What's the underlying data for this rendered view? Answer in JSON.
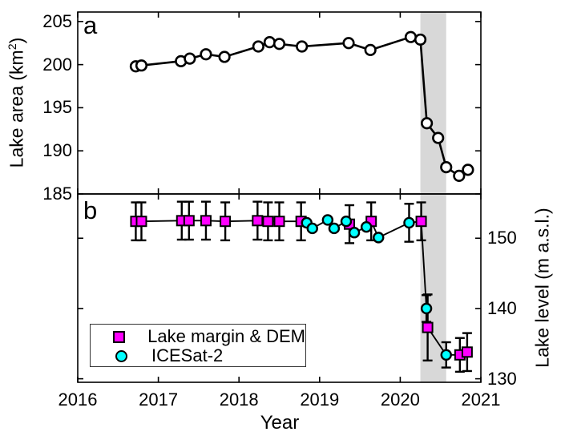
{
  "figure": {
    "background": "#ffffff",
    "axis_color": "#000000",
    "xlabel": "Year",
    "x_ticks": [
      2016,
      2017,
      2018,
      2019,
      2020,
      2021
    ],
    "xlim": [
      2016,
      2021
    ]
  },
  "labels": {
    "panel_a_letter": "a",
    "panel_b_letter": "b",
    "ylabel_a": {
      "pre": "Lake area (km",
      "sup": "2",
      "post": ")"
    },
    "ylabel_b": "Lake level (m a.s.l.)"
  },
  "legend": {
    "items": [
      {
        "label": "Lake margin & DEM",
        "marker": "square",
        "color": "#ff00ff"
      },
      {
        "label": "ICESat-2",
        "marker": "circle",
        "color": "#00ffff"
      }
    ]
  },
  "chart_data": [
    {
      "panel": "a",
      "type": "line",
      "ylabel": "Lake area (km2)",
      "xlabel": "Year",
      "xlim": [
        2016,
        2021
      ],
      "ylim": [
        185,
        206.1
      ],
      "yticks": [
        185,
        190,
        195,
        200,
        205
      ],
      "xticks": [
        2016,
        2017,
        2018,
        2019,
        2020,
        2021
      ],
      "grid": false,
      "highlight_band": {
        "x_start": 2020.25,
        "x_end": 2020.57,
        "color": "#d8d8d8"
      },
      "series": [
        {
          "name": "Lake area",
          "marker": "open-circle",
          "marker_fill": "#ffffff",
          "line_color": "#000000",
          "x": [
            2016.72,
            2016.79,
            2017.28,
            2017.39,
            2017.59,
            2017.82,
            2018.24,
            2018.38,
            2018.5,
            2018.78,
            2019.36,
            2019.63,
            2020.13,
            2020.25,
            2020.33,
            2020.47,
            2020.57,
            2020.73,
            2020.84
          ],
          "y": [
            199.8,
            199.9,
            200.4,
            200.7,
            201.2,
            200.9,
            202.1,
            202.6,
            202.4,
            202.1,
            202.5,
            201.7,
            203.2,
            202.9,
            193.2,
            191.5,
            188.1,
            187.1,
            187.8
          ]
        }
      ]
    },
    {
      "panel": "b",
      "type": "line",
      "ylabel": "Lake level (m a.s.l.)",
      "xlabel": "Year",
      "xlim": [
        2016,
        2021
      ],
      "ylim": [
        129.5,
        156.3
      ],
      "yticks": [
        130,
        140,
        150
      ],
      "xticks": [
        2016,
        2017,
        2018,
        2019,
        2020,
        2021
      ],
      "grid": false,
      "legend_position": "lower-left",
      "highlight_band": {
        "x_start": 2020.25,
        "x_end": 2020.57,
        "color": "#d8d8d8"
      },
      "series": [
        {
          "name": "Lake margin & DEM",
          "marker": "square",
          "color": "#ff00ff",
          "points": [
            {
              "x": 2016.72,
              "y": 152.4,
              "err": 2.7
            },
            {
              "x": 2016.79,
              "y": 152.4,
              "err": 2.7
            },
            {
              "x": 2017.29,
              "y": 152.5,
              "err": 2.7
            },
            {
              "x": 2017.38,
              "y": 152.5,
              "err": 2.7
            },
            {
              "x": 2017.59,
              "y": 152.5,
              "err": 2.7
            },
            {
              "x": 2017.83,
              "y": 152.4,
              "err": 2.7
            },
            {
              "x": 2018.23,
              "y": 152.5,
              "err": 2.7
            },
            {
              "x": 2018.36,
              "y": 152.4,
              "err": 2.7
            },
            {
              "x": 2018.5,
              "y": 152.4,
              "err": 2.7
            },
            {
              "x": 2018.77,
              "y": 152.4,
              "err": 2.7
            },
            {
              "x": 2019.37,
              "y": 152.0,
              "err": 2.7
            },
            {
              "x": 2019.64,
              "y": 152.4,
              "err": 2.7
            },
            {
              "x": 2020.26,
              "y": 152.4,
              "err": 2.7
            },
            {
              "x": 2020.34,
              "y": 137.3,
              "err": 4.7
            },
            {
              "x": 2020.74,
              "y": 133.4,
              "err": 2.4
            },
            {
              "x": 2020.83,
              "y": 133.8,
              "err": 2.7
            }
          ]
        },
        {
          "name": "ICESat-2",
          "marker": "circle",
          "color": "#00ffff",
          "points": [
            {
              "x": 2018.84,
              "y": 152.2,
              "err": 0
            },
            {
              "x": 2018.91,
              "y": 151.4,
              "err": 0
            },
            {
              "x": 2019.1,
              "y": 152.6,
              "err": 0
            },
            {
              "x": 2019.18,
              "y": 151.4,
              "err": 0
            },
            {
              "x": 2019.33,
              "y": 152.4,
              "err": 0
            },
            {
              "x": 2019.43,
              "y": 150.8,
              "err": 0
            },
            {
              "x": 2019.58,
              "y": 151.6,
              "err": 0
            },
            {
              "x": 2019.73,
              "y": 150.1,
              "err": 0
            },
            {
              "x": 2020.11,
              "y": 152.2,
              "err": 2.7
            },
            {
              "x": 2020.325,
              "y": 140.0,
              "err": 1.9
            },
            {
              "x": 2020.57,
              "y": 133.4,
              "err": 1.8
            }
          ]
        }
      ]
    }
  ]
}
